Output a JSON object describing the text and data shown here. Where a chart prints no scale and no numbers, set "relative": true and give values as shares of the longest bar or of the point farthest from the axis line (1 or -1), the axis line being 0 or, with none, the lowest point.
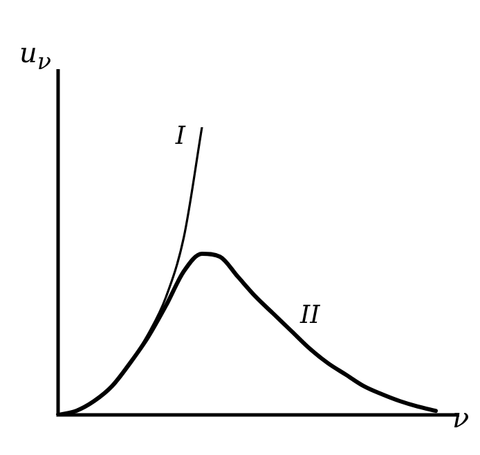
{
  "chart_data": {
    "type": "line",
    "relative": true,
    "xlabel": "ν",
    "ylabel": "u$_{ν}$",
    "legend": false,
    "marker": "none",
    "line_style": "solid",
    "categories": [
      null,
      null,
      null,
      null,
      null,
      null,
      null,
      null,
      null,
      null,
      null,
      null,
      null,
      null,
      null,
      null,
      null,
      null,
      null,
      null,
      null,
      null
    ],
    "series": [
      {
        "name": "I",
        "color": "#000000",
        "values": [
          0,
          0.014,
          0.048,
          0.1,
          0.18,
          0.28,
          0.41,
          0.62,
          1,
          null,
          null,
          null,
          null,
          null,
          null,
          null,
          null,
          null,
          null,
          null,
          null,
          null
        ]
      },
      {
        "name": "II",
        "color": "#000000",
        "values": [
          0,
          0.014,
          0.048,
          0.1,
          0.18,
          0.27,
          0.38,
          0.5,
          0.56,
          0.55,
          0.48,
          0.41,
          0.35,
          0.29,
          0.23,
          0.18,
          0.14,
          0.1,
          0.072,
          0.048,
          0.029,
          0.014
        ]
      }
    ]
  }
}
